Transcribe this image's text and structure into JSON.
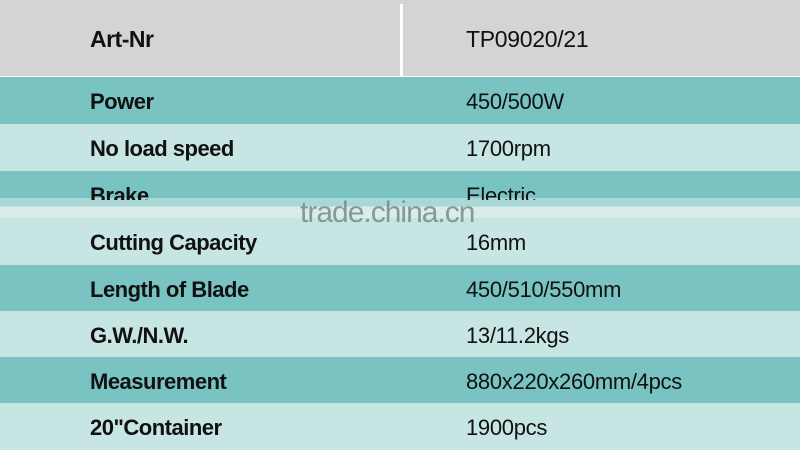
{
  "header": {
    "label": "Art-Nr",
    "value": "TP09020/21"
  },
  "rows": [
    {
      "label": "Power",
      "value": "450/500W"
    },
    {
      "label": "No load speed",
      "value": "1700rpm"
    },
    {
      "label": "Brake",
      "value": "Electric"
    },
    {
      "label": "Cutting Capacity",
      "value": "16mm"
    },
    {
      "label": "Length of Blade",
      "value": "450/510/550mm"
    },
    {
      "label": "G.W./N.W.",
      "value": "13/11.2kgs"
    },
    {
      "label": "Measurement",
      "value": "880x220x260mm/4pcs"
    },
    {
      "label": "20\"Container",
      "value": "1900pcs"
    }
  ],
  "watermark": "trade.china.cn",
  "colors": {
    "header": "#d4d4d4",
    "teal": "#79c3c3",
    "light": "#c7e5e2"
  }
}
